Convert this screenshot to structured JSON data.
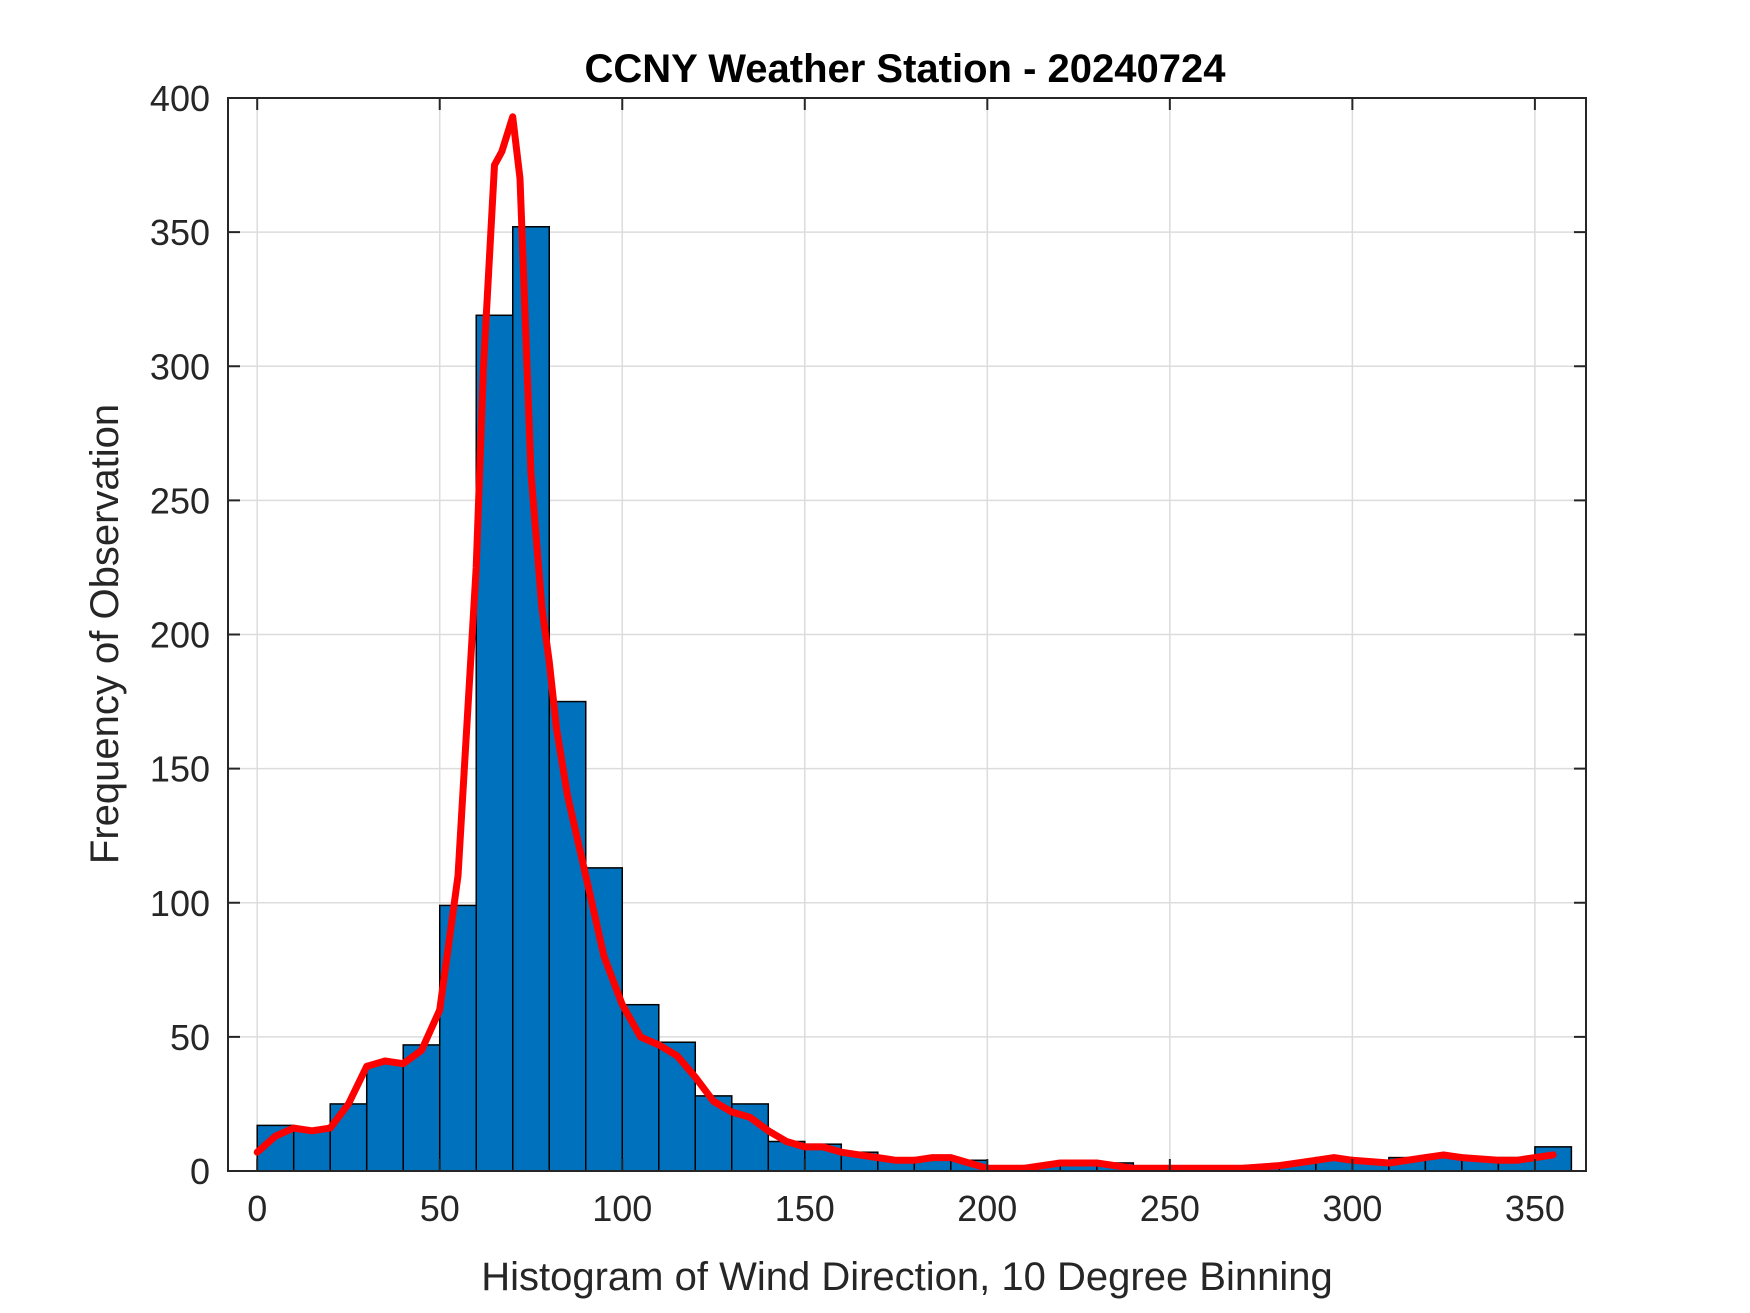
{
  "chart_data": {
    "type": "bar",
    "title": "CCNY Weather Station - 20240724",
    "xlabel": "Histogram of Wind Direction, 10 Degree Binning",
    "ylabel": "Frequency of Observation",
    "xlim": [
      -8,
      364
    ],
    "ylim": [
      0,
      400
    ],
    "xticks": [
      0,
      50,
      100,
      150,
      200,
      250,
      300,
      350
    ],
    "yticks": [
      0,
      50,
      100,
      150,
      200,
      250,
      300,
      350,
      400
    ],
    "grid": true,
    "bar_color": "#0072bd",
    "line_color": "#ff0000",
    "bin_width": 10,
    "bins": [
      {
        "start": 0,
        "value": 17
      },
      {
        "start": 10,
        "value": 15
      },
      {
        "start": 20,
        "value": 25
      },
      {
        "start": 30,
        "value": 40
      },
      {
        "start": 40,
        "value": 47
      },
      {
        "start": 50,
        "value": 99
      },
      {
        "start": 60,
        "value": 319
      },
      {
        "start": 70,
        "value": 352
      },
      {
        "start": 80,
        "value": 175
      },
      {
        "start": 90,
        "value": 113
      },
      {
        "start": 100,
        "value": 62
      },
      {
        "start": 110,
        "value": 48
      },
      {
        "start": 120,
        "value": 28
      },
      {
        "start": 130,
        "value": 25
      },
      {
        "start": 140,
        "value": 11
      },
      {
        "start": 150,
        "value": 10
      },
      {
        "start": 160,
        "value": 7
      },
      {
        "start": 170,
        "value": 4
      },
      {
        "start": 180,
        "value": 5
      },
      {
        "start": 190,
        "value": 4
      },
      {
        "start": 200,
        "value": 1
      },
      {
        "start": 210,
        "value": 2
      },
      {
        "start": 220,
        "value": 3
      },
      {
        "start": 230,
        "value": 3
      },
      {
        "start": 240,
        "value": 1
      },
      {
        "start": 250,
        "value": 1
      },
      {
        "start": 260,
        "value": 1
      },
      {
        "start": 270,
        "value": 2
      },
      {
        "start": 280,
        "value": 3
      },
      {
        "start": 290,
        "value": 5
      },
      {
        "start": 300,
        "value": 3
      },
      {
        "start": 310,
        "value": 5
      },
      {
        "start": 320,
        "value": 6
      },
      {
        "start": 330,
        "value": 4
      },
      {
        "start": 340,
        "value": 5
      },
      {
        "start": 350,
        "value": 9
      }
    ],
    "line": {
      "x": [
        0,
        5,
        10,
        15,
        20,
        25,
        30,
        35,
        40,
        45,
        50,
        55,
        60,
        62,
        65,
        67,
        70,
        72,
        75,
        78,
        80,
        82,
        85,
        90,
        95,
        100,
        105,
        110,
        115,
        120,
        125,
        130,
        135,
        140,
        145,
        150,
        155,
        160,
        165,
        170,
        175,
        180,
        185,
        190,
        195,
        200,
        205,
        210,
        220,
        230,
        240,
        250,
        260,
        270,
        280,
        290,
        295,
        300,
        310,
        320,
        325,
        330,
        340,
        345,
        350,
        355
      ],
      "y": [
        7,
        13,
        16,
        15,
        16,
        25,
        39,
        41,
        40,
        45,
        60,
        110,
        225,
        300,
        375,
        380,
        393,
        370,
        260,
        210,
        190,
        165,
        140,
        110,
        80,
        62,
        50,
        47,
        43,
        35,
        26,
        22,
        20,
        15,
        11,
        9,
        9,
        7,
        6,
        5,
        4,
        4,
        5,
        5,
        3,
        1,
        1,
        1,
        3,
        3,
        1,
        1,
        1,
        1,
        2,
        4,
        5,
        4,
        3,
        5,
        6,
        5,
        4,
        4,
        5,
        6
      ]
    }
  }
}
